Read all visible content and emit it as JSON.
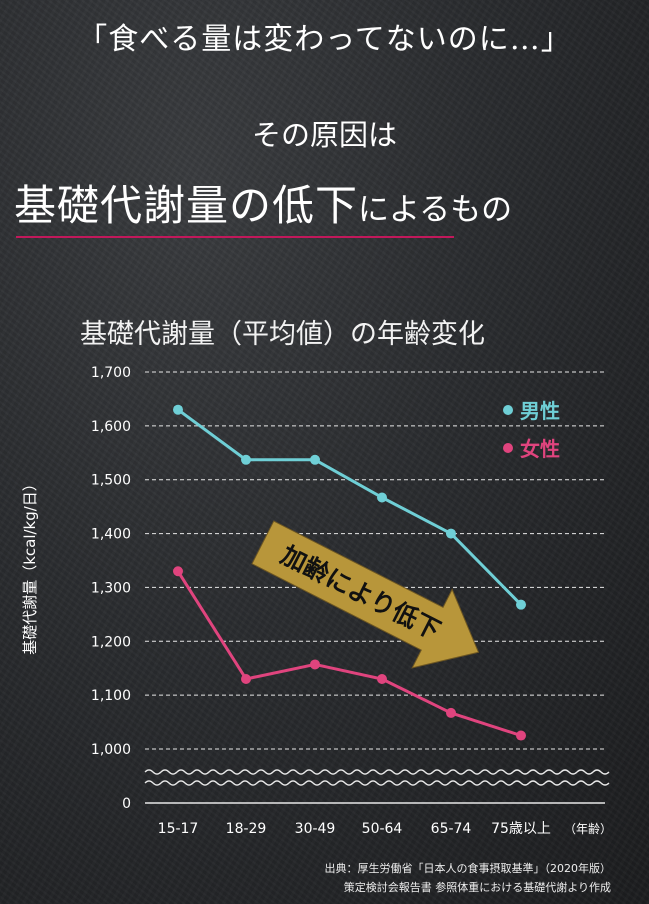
{
  "headline": "「食べる量は変わってないのに…」",
  "subtitle": {
    "line1": "その原因は",
    "emphasis": "基礎代謝量の低下",
    "suffix": "によるもの"
  },
  "colors": {
    "male": "#6fcfd6",
    "female": "#e0447e",
    "accent_line": "#c2185b",
    "arrow": "#b8963a"
  },
  "chart_data": {
    "type": "line",
    "title": "基礎代謝量（平均値）の年齢変化",
    "ylabel": "基礎代謝量（kcal/kg/日）",
    "categories": [
      "15-17",
      "18-29",
      "30-49",
      "50-64",
      "65-74",
      "75歳以上"
    ],
    "x_unit_label": "（年齢）",
    "y_ticks": [
      "1,700",
      "1,600",
      "1,500",
      "1,400",
      "1,300",
      "1,200",
      "1,100",
      "1,000",
      "0"
    ],
    "ylim": [
      1000,
      1700
    ],
    "axis_break": true,
    "grid": true,
    "legend_position": "top-right",
    "series": [
      {
        "name": "男性",
        "color_key": "male",
        "values": [
          1630,
          1537,
          1537,
          1467,
          1400,
          1268
        ]
      },
      {
        "name": "女性",
        "color_key": "female",
        "values": [
          1330,
          1130,
          1157,
          1130,
          1067,
          1025
        ]
      }
    ],
    "annotation": "加齢により低下"
  },
  "source": {
    "line1": "出典：厚生労働省「日本人の食事摂取基準」（2020年版）",
    "line2": "策定検討会報告書 参照体重における基礎代謝より作成"
  }
}
